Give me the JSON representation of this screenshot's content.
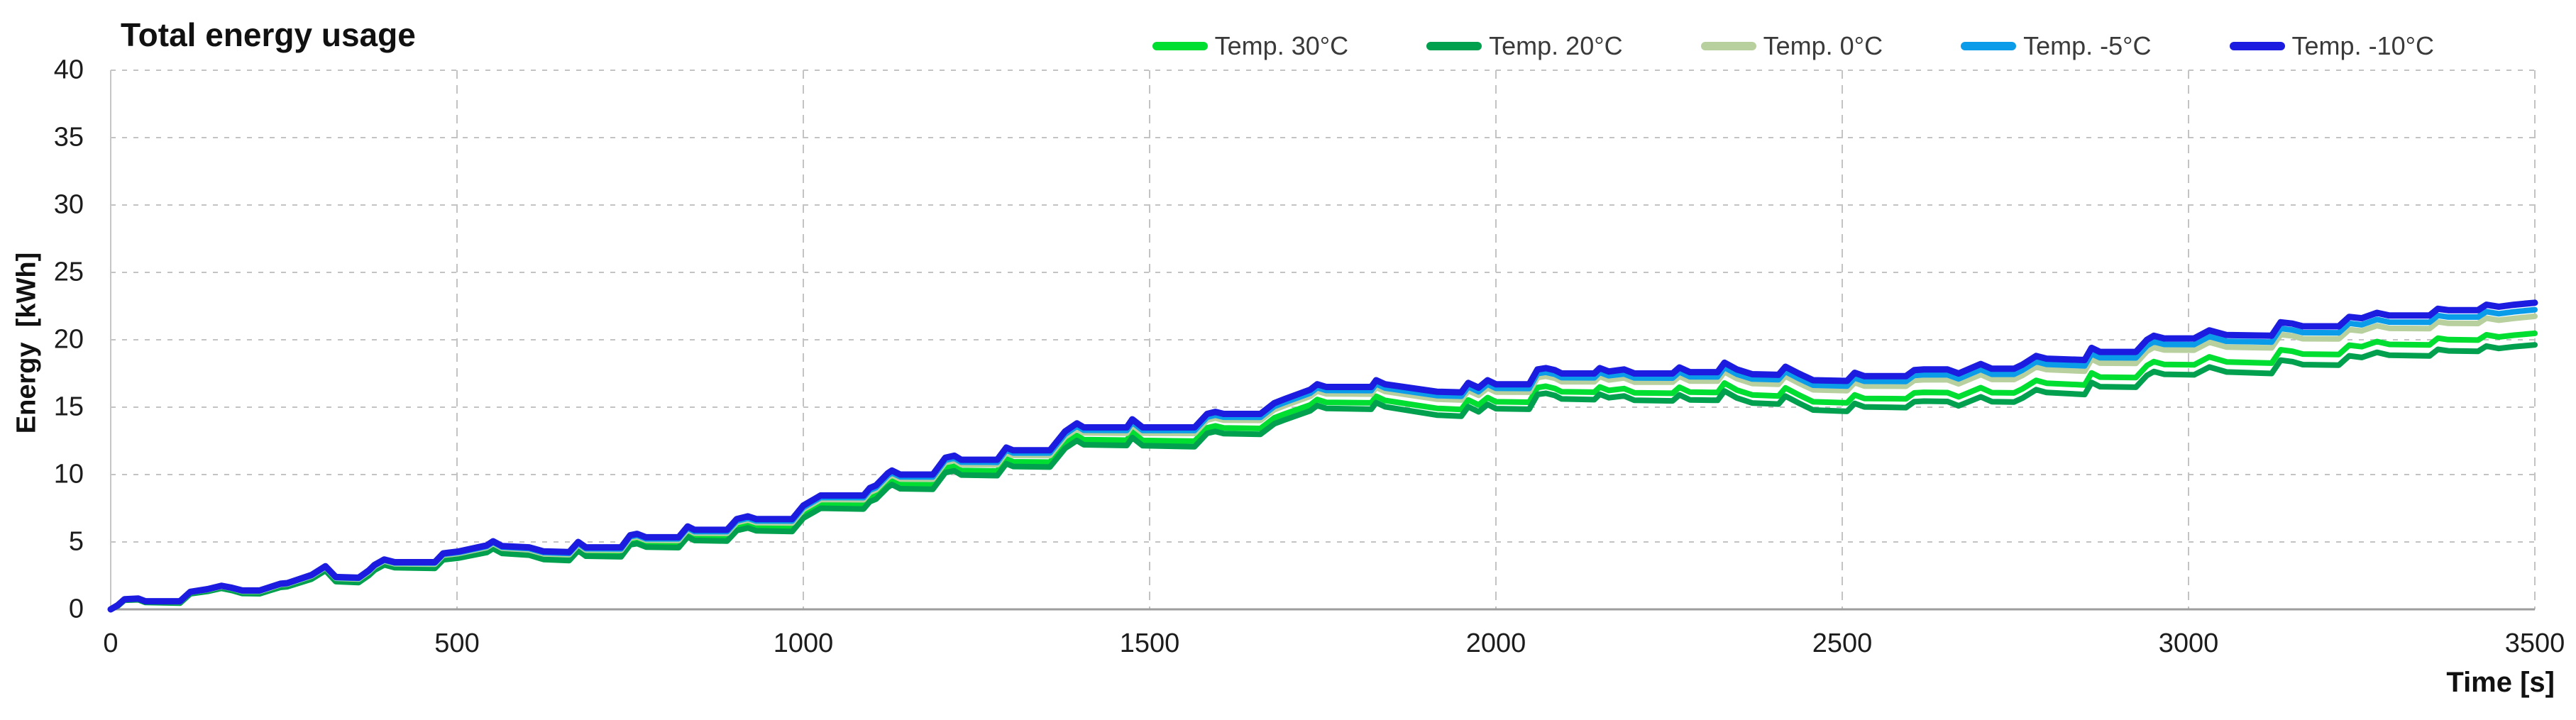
{
  "title": "Total energy usage",
  "axes": {
    "y_label": "Energy  [kWh]",
    "x_label": "Time [s]"
  },
  "legend": [
    {
      "label": "Temp. 30°C",
      "color": "#00DE32"
    },
    {
      "label": "Temp. 20°C",
      "color": "#00A04E"
    },
    {
      "label": "Temp. 0°C",
      "color": "#B8CF9E"
    },
    {
      "label": "Temp. -5°C",
      "color": "#0A9CE8"
    },
    {
      "label": "Temp. -10°C",
      "color": "#1C1CE0"
    }
  ],
  "chart_data": {
    "type": "line",
    "title": "Total energy usage",
    "xlabel": "Time [s]",
    "ylabel": "Energy [kWh]",
    "xlim": [
      0,
      3500
    ],
    "ylim": [
      0,
      40
    ],
    "x_ticks": [
      0,
      500,
      1000,
      1500,
      2000,
      2500,
      3000,
      3500
    ],
    "y_ticks": [
      0,
      5,
      10,
      15,
      20,
      25,
      30,
      35,
      40
    ],
    "grid": true,
    "legend_position": "top-right",
    "x": [
      0,
      10,
      20,
      40,
      50,
      100,
      115,
      140,
      160,
      175,
      190,
      215,
      230,
      245,
      255,
      290,
      310,
      325,
      358,
      373,
      381,
      395,
      410,
      468,
      480,
      503,
      543,
      552,
      565,
      604,
      625,
      662,
      675,
      686,
      737,
      750,
      760,
      773,
      820,
      833,
      843,
      890,
      904,
      920,
      932,
      984,
      1000,
      1025,
      1087,
      1096,
      1105,
      1122,
      1128,
      1140,
      1187,
      1205,
      1218,
      1228,
      1280,
      1293,
      1303,
      1356,
      1378,
      1395,
      1405,
      1467,
      1475,
      1490,
      1565,
      1583,
      1595,
      1607,
      1660,
      1680,
      1695,
      1732,
      1742,
      1755,
      1820,
      1827,
      1840,
      1915,
      1950,
      1960,
      1975,
      1988,
      2000,
      2048,
      2060,
      2072,
      2085,
      2095,
      2142,
      2150,
      2163,
      2185,
      2200,
      2255,
      2265,
      2280,
      2320,
      2330,
      2348,
      2370,
      2408,
      2418,
      2437,
      2458,
      2507,
      2518,
      2532,
      2592,
      2604,
      2618,
      2652,
      2668,
      2700,
      2716,
      2748,
      2760,
      2780,
      2795,
      2850,
      2860,
      2872,
      2924,
      2940,
      2950,
      2965,
      3008,
      3030,
      3055,
      3120,
      3133,
      3150,
      3165,
      3217,
      3232,
      3250,
      3272,
      3290,
      3348,
      3360,
      3375,
      3418,
      3430,
      3448,
      3470,
      3500
    ],
    "series": [
      {
        "name": "Temp. 30°C",
        "color": "#00DE32",
        "stroke_width": 8,
        "values": [
          0,
          0.29,
          0.74,
          0.77,
          0.57,
          0.54,
          1.23,
          1.41,
          1.65,
          1.49,
          1.28,
          1.26,
          1.5,
          1.74,
          1.78,
          2.36,
          3.0,
          2.19,
          2.12,
          2.66,
          3.05,
          3.44,
          3.23,
          3.2,
          3.84,
          3.97,
          4.4,
          4.69,
          4.33,
          4.21,
          3.89,
          3.82,
          4.56,
          4.15,
          4.12,
          5.01,
          5.11,
          4.85,
          4.82,
          5.61,
          5.35,
          5.32,
          6.11,
          6.3,
          6.09,
          6.06,
          7.05,
          7.78,
          7.74,
          8.29,
          8.48,
          9.37,
          9.57,
          9.26,
          9.23,
          10.47,
          10.61,
          10.3,
          10.27,
          11.16,
          10.95,
          10.92,
          12.3,
          12.89,
          12.59,
          12.55,
          13.14,
          12.53,
          12.48,
          13.47,
          13.61,
          13.46,
          13.42,
          14.21,
          14.5,
          15.17,
          15.57,
          15.36,
          15.32,
          15.81,
          15.5,
          14.91,
          14.83,
          15.53,
          15.17,
          15.71,
          15.4,
          15.37,
          16.46,
          16.55,
          16.39,
          16.14,
          16.11,
          16.5,
          16.24,
          16.38,
          16.07,
          16.03,
          16.48,
          16.12,
          16.09,
          16.79,
          16.27,
          15.91,
          15.83,
          16.43,
          15.92,
          15.4,
          15.32,
          15.91,
          15.65,
          15.62,
          16.06,
          16.1,
          16.08,
          15.77,
          16.45,
          16.08,
          16.06,
          16.36,
          16.99,
          16.78,
          16.65,
          17.54,
          17.23,
          17.2,
          18.09,
          18.38,
          18.17,
          18.14,
          18.73,
          18.36,
          18.27,
          19.26,
          19.15,
          18.94,
          18.91,
          19.6,
          19.49,
          19.87,
          19.66,
          19.62,
          20.12,
          20.01,
          19.98,
          20.37,
          20.21,
          20.34,
          20.48
        ]
      },
      {
        "name": "Temp. 20°C",
        "color": "#00A04E",
        "stroke_width": 8,
        "values": [
          0,
          0.24,
          0.68,
          0.71,
          0.51,
          0.46,
          1.15,
          1.33,
          1.56,
          1.4,
          1.18,
          1.16,
          1.4,
          1.63,
          1.68,
          2.24,
          2.88,
          2.06,
          1.99,
          2.52,
          2.91,
          3.3,
          3.09,
          3.04,
          3.68,
          3.81,
          4.22,
          4.51,
          4.15,
          4.02,
          3.7,
          3.62,
          4.36,
          3.95,
          3.9,
          4.79,
          4.88,
          4.62,
          4.58,
          5.37,
          5.11,
          5.07,
          5.85,
          6.04,
          5.83,
          5.78,
          6.77,
          7.5,
          7.44,
          7.99,
          8.18,
          9.06,
          9.26,
          8.95,
          8.91,
          10.14,
          10.28,
          9.97,
          9.92,
          10.81,
          10.6,
          10.56,
          11.94,
          12.52,
          12.21,
          12.16,
          12.75,
          12.14,
          12.07,
          13.06,
          13.2,
          13.04,
          12.99,
          13.77,
          14.06,
          14.73,
          15.12,
          14.91,
          14.85,
          15.34,
          15.03,
          14.41,
          14.33,
          15.03,
          14.66,
          15.2,
          14.89,
          14.85,
          15.94,
          16.03,
          15.87,
          15.61,
          15.56,
          15.96,
          15.7,
          15.83,
          15.51,
          15.47,
          15.91,
          15.54,
          15.51,
          16.2,
          15.68,
          15.31,
          15.23,
          15.82,
          15.31,
          14.79,
          14.69,
          15.28,
          15.02,
          14.97,
          15.41,
          15.45,
          15.42,
          15.1,
          15.77,
          15.41,
          15.38,
          15.67,
          16.3,
          16.09,
          15.94,
          16.83,
          16.52,
          16.48,
          17.36,
          17.65,
          17.44,
          17.4,
          17.98,
          17.61,
          17.5,
          18.49,
          18.38,
          18.16,
          18.12,
          18.81,
          18.69,
          19.07,
          18.85,
          18.8,
          19.29,
          19.18,
          19.14,
          19.53,
          19.36,
          19.49,
          19.62
        ]
      },
      {
        "name": "Temp. 0°C",
        "color": "#B8CF9E",
        "stroke_width": 8,
        "values": [
          0,
          0.3,
          0.74,
          0.79,
          0.59,
          0.57,
          1.27,
          1.46,
          1.7,
          1.55,
          1.34,
          1.34,
          1.58,
          1.83,
          1.88,
          2.47,
          3.11,
          2.31,
          2.25,
          2.79,
          3.19,
          3.59,
          3.38,
          3.36,
          4.01,
          4.15,
          4.59,
          4.89,
          4.54,
          4.42,
          4.12,
          4.06,
          4.8,
          4.4,
          4.39,
          5.28,
          5.38,
          5.13,
          5.11,
          5.91,
          5.66,
          5.64,
          6.44,
          6.63,
          6.43,
          6.41,
          7.41,
          8.15,
          8.13,
          8.68,
          8.88,
          9.77,
          9.97,
          9.67,
          9.66,
          10.9,
          11.05,
          10.74,
          10.73,
          11.63,
          11.42,
          11.41,
          12.8,
          13.4,
          13.09,
          13.07,
          13.67,
          13.07,
          13.05,
          14.04,
          14.19,
          14.03,
          14.02,
          14.81,
          15.11,
          15.8,
          16.19,
          15.99,
          15.97,
          16.47,
          16.17,
          15.59,
          15.53,
          16.23,
          15.88,
          16.42,
          16.12,
          16.11,
          17.2,
          17.3,
          17.15,
          16.89,
          16.88,
          17.28,
          17.02,
          17.17,
          16.86,
          16.85,
          17.29,
          16.94,
          16.93,
          17.62,
          17.12,
          16.76,
          16.7,
          17.3,
          16.79,
          16.29,
          16.22,
          16.82,
          16.57,
          16.55,
          16.99,
          17.04,
          17.03,
          16.73,
          17.42,
          17.06,
          17.05,
          17.35,
          17.99,
          17.79,
          17.67,
          18.57,
          18.27,
          18.25,
          19.15,
          19.44,
          19.24,
          19.23,
          19.82,
          19.46,
          19.4,
          20.39,
          20.29,
          20.08,
          20.07,
          20.76,
          20.66,
          21.05,
          20.85,
          20.83,
          21.33,
          21.22,
          21.21,
          21.61,
          21.45,
          21.59,
          21.74
        ]
      },
      {
        "name": "Temp. -5°C",
        "color": "#0A9CE8",
        "stroke_width": 8,
        "values": [
          0,
          0.3,
          0.75,
          0.79,
          0.59,
          0.59,
          1.28,
          1.48,
          1.73,
          1.57,
          1.37,
          1.37,
          1.62,
          1.86,
          1.91,
          2.51,
          3.15,
          2.35,
          2.3,
          2.84,
          3.24,
          3.64,
          3.44,
          3.43,
          4.08,
          4.22,
          4.67,
          4.97,
          4.62,
          4.51,
          4.21,
          4.15,
          4.9,
          4.5,
          4.49,
          5.39,
          5.49,
          5.23,
          5.23,
          6.03,
          5.77,
          5.77,
          6.56,
          6.76,
          6.56,
          6.55,
          7.55,
          8.3,
          8.29,
          8.84,
          9.03,
          9.93,
          10.13,
          9.83,
          9.82,
          11.07,
          11.22,
          10.92,
          10.91,
          11.81,
          11.6,
          11.6,
          12.99,
          13.59,
          13.29,
          13.28,
          13.88,
          13.28,
          13.27,
          14.26,
          14.41,
          14.26,
          14.25,
          15.05,
          15.35,
          16.04,
          16.44,
          16.24,
          16.23,
          16.73,
          16.42,
          15.86,
          15.81,
          16.51,
          16.15,
          16.7,
          16.4,
          16.39,
          17.49,
          17.59,
          17.44,
          17.19,
          17.18,
          17.58,
          17.33,
          17.47,
          17.17,
          17.16,
          17.61,
          17.26,
          17.25,
          17.95,
          17.45,
          17.09,
          17.04,
          17.64,
          17.13,
          16.63,
          16.57,
          17.17,
          16.92,
          16.91,
          17.36,
          17.41,
          17.4,
          17.1,
          17.8,
          17.44,
          17.44,
          17.74,
          18.38,
          18.18,
          18.07,
          18.97,
          18.67,
          18.66,
          19.56,
          19.86,
          19.66,
          19.65,
          20.25,
          19.89,
          19.83,
          20.83,
          20.73,
          20.53,
          20.52,
          21.22,
          21.11,
          21.51,
          21.31,
          21.3,
          21.8,
          21.69,
          21.69,
          22.09,
          21.93,
          22.08,
          22.23
        ]
      },
      {
        "name": "Temp. -10°C",
        "color": "#1C1CE0",
        "stroke_width": 9,
        "values": [
          0,
          0.3,
          0.75,
          0.8,
          0.6,
          0.6,
          1.3,
          1.5,
          1.75,
          1.6,
          1.4,
          1.4,
          1.65,
          1.9,
          1.95,
          2.55,
          3.2,
          2.4,
          2.35,
          2.9,
          3.3,
          3.7,
          3.5,
          3.5,
          4.15,
          4.3,
          4.75,
          5.05,
          4.7,
          4.6,
          4.3,
          4.25,
          5.0,
          4.6,
          4.6,
          5.5,
          5.6,
          5.35,
          5.35,
          6.15,
          5.9,
          5.9,
          6.7,
          6.9,
          6.7,
          6.7,
          7.7,
          8.45,
          8.45,
          9.0,
          9.2,
          10.1,
          10.3,
          10.0,
          10.0,
          11.25,
          11.4,
          11.1,
          11.1,
          12.0,
          11.8,
          11.8,
          13.2,
          13.8,
          13.5,
          13.5,
          14.1,
          13.5,
          13.5,
          14.5,
          14.65,
          14.5,
          14.5,
          15.3,
          15.6,
          16.3,
          16.7,
          16.5,
          16.5,
          17.0,
          16.7,
          16.15,
          16.1,
          16.8,
          16.45,
          17.0,
          16.7,
          16.7,
          17.8,
          17.9,
          17.75,
          17.5,
          17.5,
          17.9,
          17.65,
          17.8,
          17.5,
          17.5,
          17.95,
          17.6,
          17.6,
          18.3,
          17.8,
          17.45,
          17.4,
          18.0,
          17.5,
          17.0,
          16.95,
          17.55,
          17.3,
          17.3,
          17.75,
          17.8,
          17.8,
          17.5,
          18.2,
          17.85,
          17.85,
          18.15,
          18.8,
          18.6,
          18.5,
          19.4,
          19.1,
          19.1,
          20.0,
          20.3,
          20.1,
          20.1,
          20.7,
          20.35,
          20.3,
          21.3,
          21.2,
          21.0,
          21.0,
          21.7,
          21.6,
          22.0,
          21.8,
          21.8,
          22.3,
          22.2,
          22.2,
          22.6,
          22.45,
          22.6,
          22.75
        ]
      }
    ]
  },
  "style": {
    "grid_color": "#c3c3c3",
    "axis_color": "#9d9d9d",
    "left_border_color": "#c6c6c6"
  }
}
